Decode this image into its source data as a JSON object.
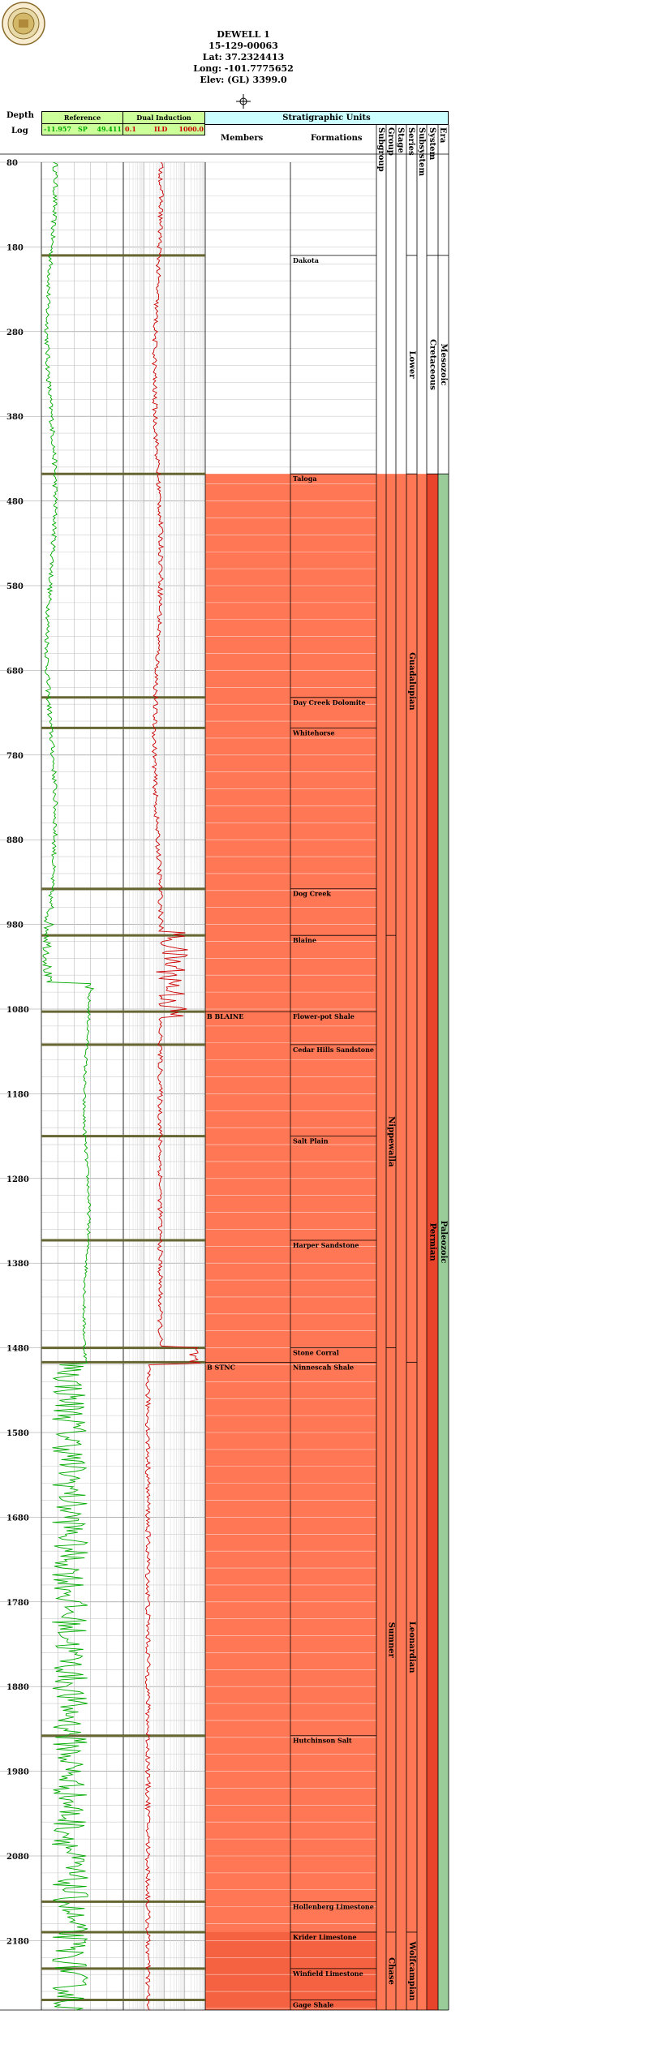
{
  "header": {
    "well_name": "DEWELL 1",
    "api": "15-129-00063",
    "lat": "Lat: 37.2324413",
    "long": "Long: -101.7775652",
    "elev": "Elev: (GL) 3399.0"
  },
  "columns": {
    "depth": "Depth",
    "log": "Log",
    "reference": "Reference",
    "dual_induction": "Dual Induction",
    "strat_units": "Stratigraphic Units",
    "members": "Members",
    "formations": "Formations",
    "ranks": [
      "Subgroup",
      "Group",
      "Stage",
      "Series",
      "Subsystem",
      "System",
      "Era"
    ]
  },
  "curve_scales": {
    "sp_min": "-11.957",
    "sp_name": "SP",
    "sp_max": "49.411",
    "ild_min": "0.1",
    "ild_name": "ILD",
    "ild_max": "1000.0"
  },
  "colors": {
    "sp_curve": "#00aa00",
    "ild_curve": "#cc0000",
    "reference_header": "#ccff99",
    "strat_header": "#ccffff",
    "permian_fill": "#ff7755",
    "permian_system": "#e8432b",
    "era_paleozoic": "#99cc99",
    "boundary_line": "#666633"
  },
  "chart_data": {
    "type": "well_log",
    "depth_range": [
      80,
      2180
    ],
    "depth_ticks": [
      80,
      180,
      280,
      380,
      480,
      580,
      680,
      780,
      880,
      980,
      1080,
      1180,
      1280,
      1380,
      1480,
      1580,
      1680,
      1780,
      1880,
      1980,
      2080,
      2180
    ],
    "formations": [
      {
        "name": "Dakota",
        "top": 190
      },
      {
        "name": "Taloga",
        "top": 448
      },
      {
        "name": "Day Creek Dolomite",
        "top": 712
      },
      {
        "name": "Whitehorse",
        "top": 748
      },
      {
        "name": "Dog Creek",
        "top": 938
      },
      {
        "name": "Blaine",
        "top": 993
      },
      {
        "name": "Flower-pot Shale",
        "top": 1083
      },
      {
        "name": "Cedar Hills Sandstone",
        "top": 1122
      },
      {
        "name": "Salt Plain",
        "top": 1230
      },
      {
        "name": "Harper Sandstone",
        "top": 1353
      },
      {
        "name": "Stone Corral",
        "top": 1480
      },
      {
        "name": "Ninnescah Shale",
        "top": 1497
      },
      {
        "name": "Hutchinson Salt",
        "top": 1938
      },
      {
        "name": "Hollenberg Limestone",
        "top": 2134
      },
      {
        "name": "Krider Limestone",
        "top": 2170
      },
      {
        "name": "Winfield Limestone",
        "top": 2213
      },
      {
        "name": "Gage Shale",
        "top": 2250
      }
    ],
    "members": [
      {
        "name": "B BLAINE",
        "top": 1083
      },
      {
        "name": "B STNC",
        "top": 1497
      }
    ],
    "units": {
      "series": [
        {
          "name": "Lower",
          "top": 190,
          "bottom": 448
        },
        {
          "name": "Guadalupian",
          "top": 448,
          "bottom": 938
        },
        {
          "name": "Leonardian",
          "top": 1497,
          "bottom": 2170
        },
        {
          "name": "Wolfcampian",
          "top": 2170,
          "bottom": 2262
        }
      ],
      "group": [
        {
          "name": "Nippewalla",
          "top": 993,
          "bottom": 1480
        },
        {
          "name": "Sumner",
          "top": 1480,
          "bottom": 2170
        },
        {
          "name": "Chase",
          "top": 2170,
          "bottom": 2262
        }
      ],
      "system": [
        {
          "name": "Cretaceous",
          "top": 190,
          "bottom": 448
        },
        {
          "name": "Permian",
          "top": 448,
          "bottom": 2262
        }
      ],
      "era": [
        {
          "name": "Mesozoic",
          "top": 190,
          "bottom": 448
        },
        {
          "name": "Paleozoic",
          "top": 448,
          "bottom": 2262
        }
      ]
    }
  }
}
